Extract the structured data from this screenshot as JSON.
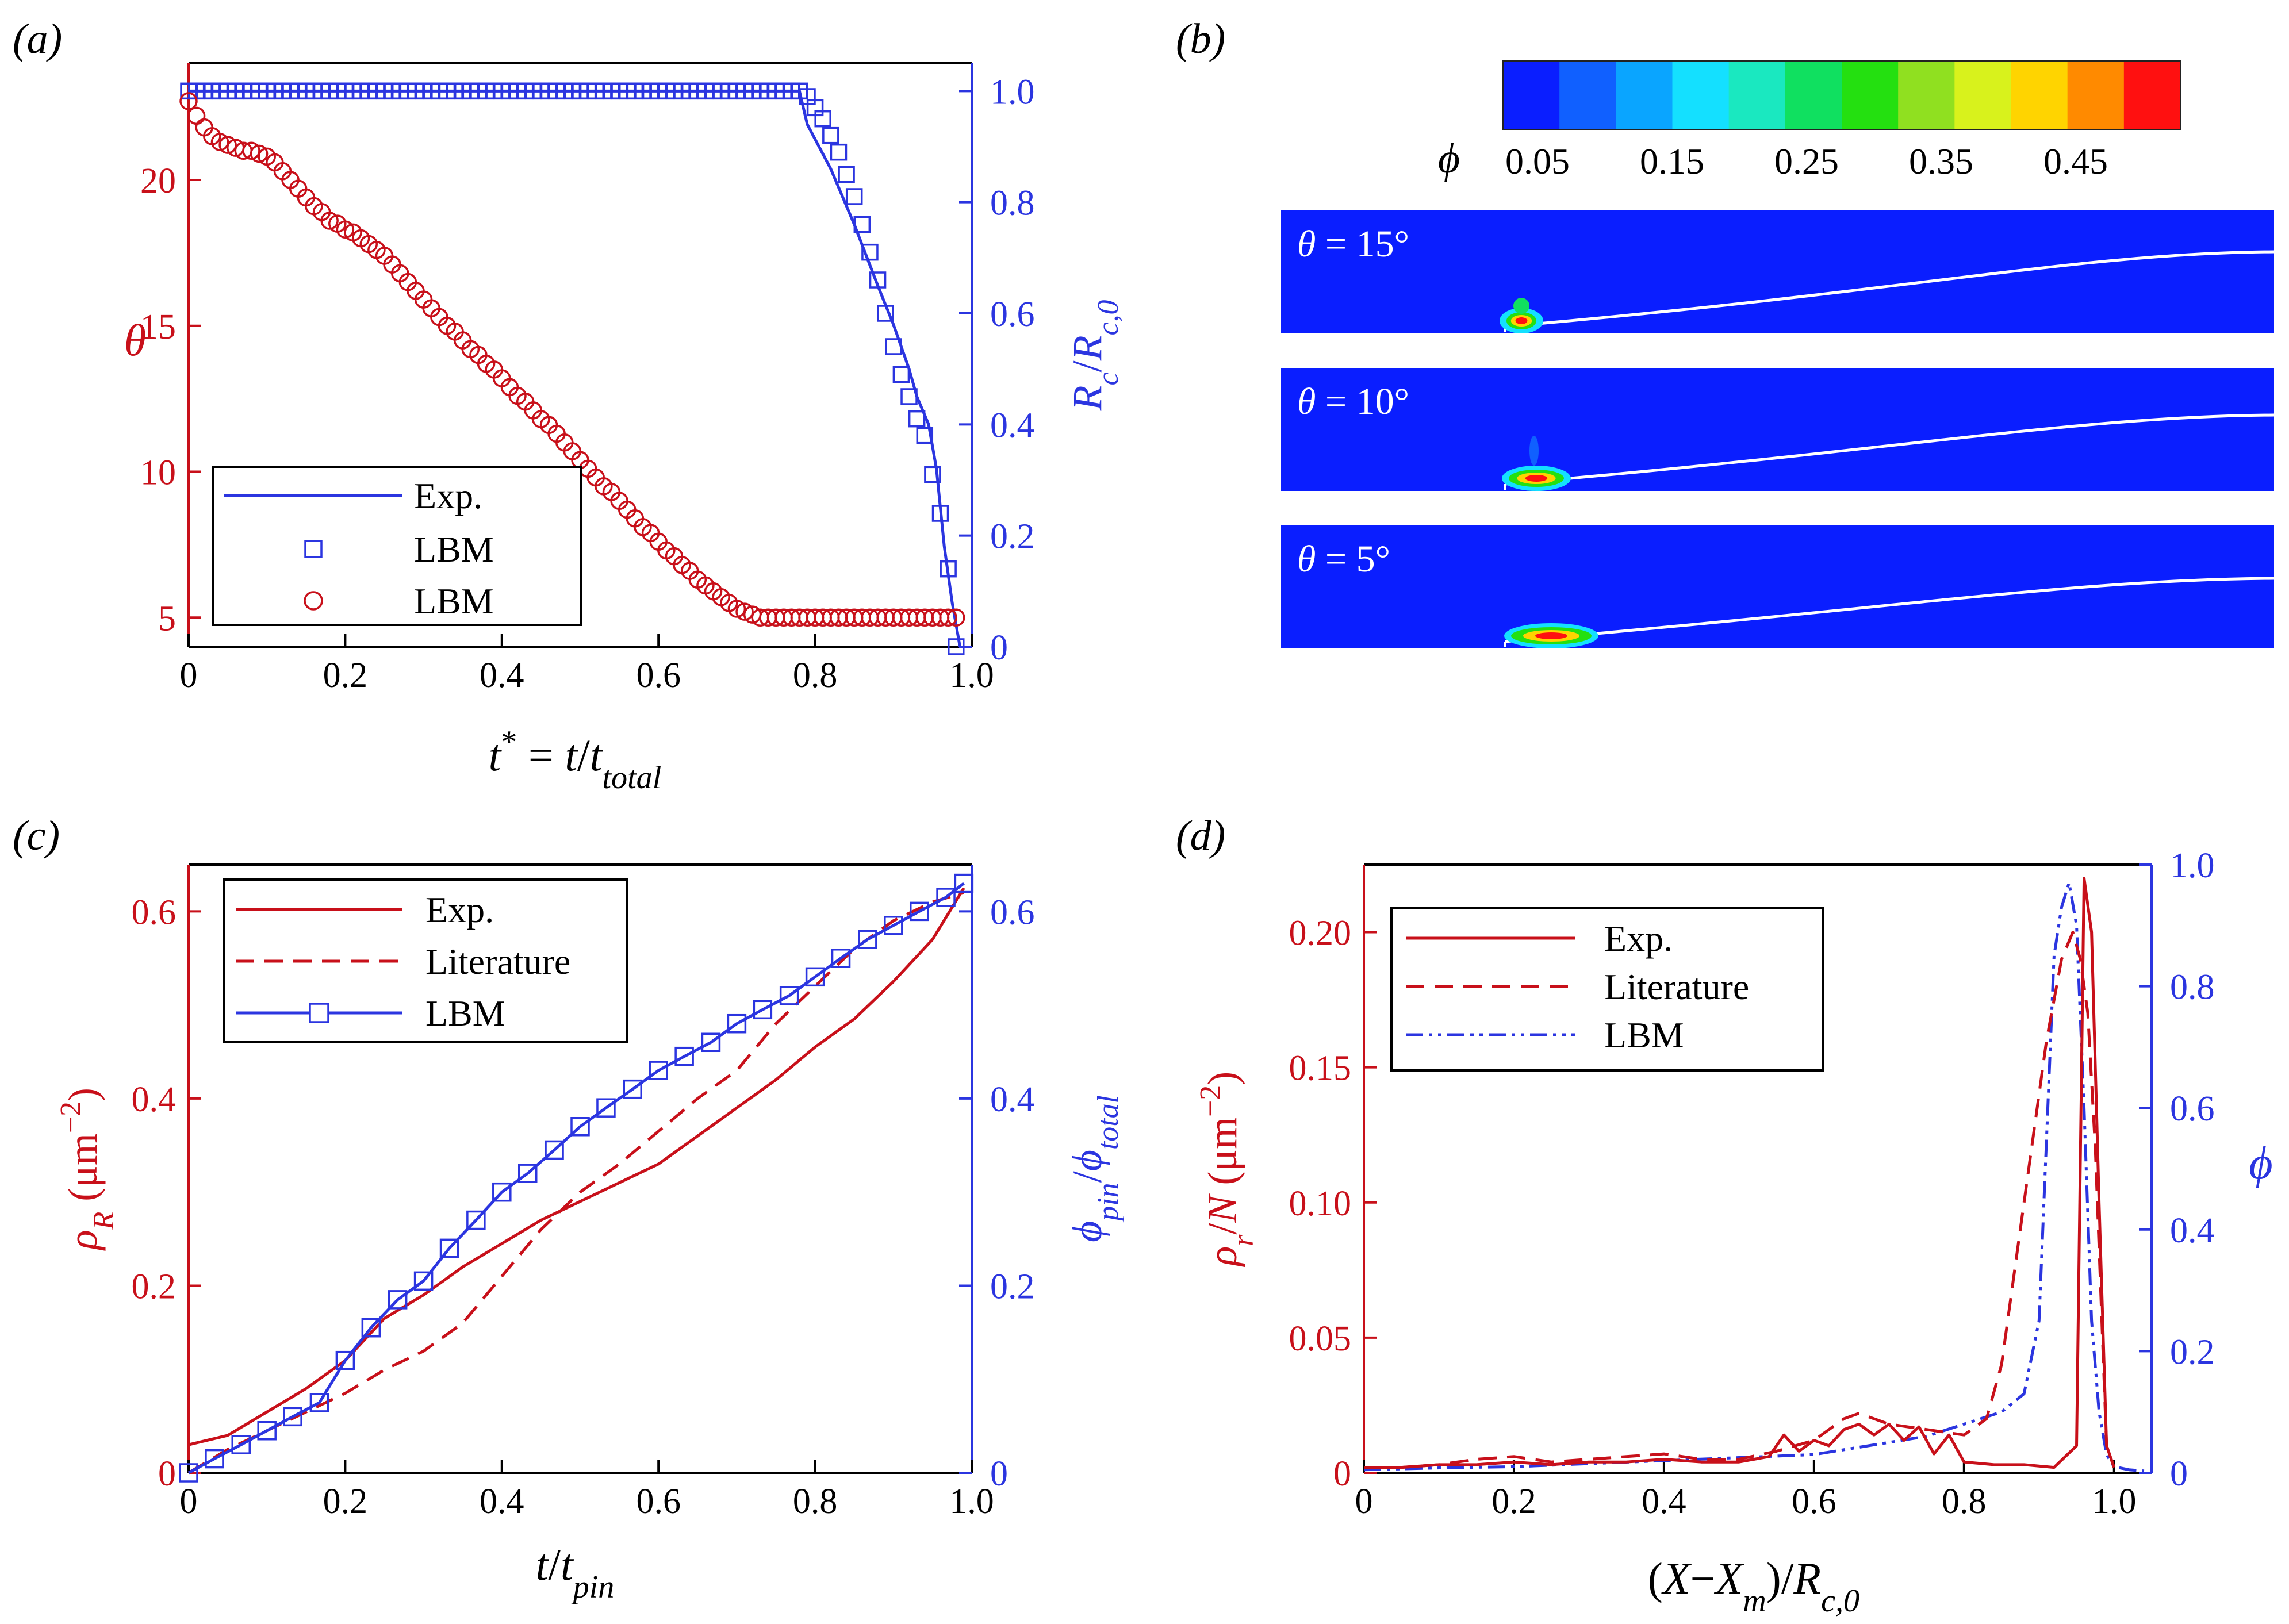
{
  "colors": {
    "red": "#c8101a",
    "blue": "#2b35e0",
    "field": "#0a1eff",
    "colormap": [
      "#0a1eff",
      "#1060ff",
      "#0aa5ff",
      "#14e0ff",
      "#1ae8c0",
      "#10e060",
      "#24e010",
      "#90e020",
      "#d8f21c",
      "#ffd400",
      "#ff8a00",
      "#ff1010"
    ]
  },
  "panels": {
    "a": {
      "tag": "(a)"
    },
    "b": {
      "tag": "(b)"
    },
    "c": {
      "tag": "(c)"
    },
    "d": {
      "tag": "(d)"
    }
  },
  "chart_data": [
    {
      "panel": "a",
      "type": "line",
      "xlabel": "t* = t/t_total",
      "ylabel": "θ",
      "y2label": "R_c/R_c,0",
      "xlim": [
        0,
        1.0
      ],
      "ylim": [
        4,
        24
      ],
      "y2lim": [
        0,
        1.05
      ],
      "xticks": [
        "0",
        "0.2",
        "0.4",
        "0.6",
        "0.8",
        "1.0"
      ],
      "yticks": [
        "5",
        "10",
        "15",
        "20"
      ],
      "y2ticks": [
        "0",
        "0.2",
        "0.4",
        "0.6",
        "0.8",
        "1.0"
      ],
      "legend": [
        "Exp.",
        "LBM",
        "LBM"
      ],
      "legend_position": "bottom-left",
      "series": [
        {
          "name": "Exp.",
          "axis": "right",
          "style": "solid-blue",
          "x": [
            0,
            0.78,
            0.79,
            0.82,
            0.85,
            0.88,
            0.9,
            0.92,
            0.93,
            0.945,
            0.955,
            0.965,
            0.975,
            0.985
          ],
          "y": [
            1.0,
            1.0,
            0.94,
            0.86,
            0.76,
            0.65,
            0.58,
            0.5,
            0.45,
            0.4,
            0.32,
            0.18,
            0.08,
            0.0
          ]
        },
        {
          "name": "LBM",
          "axis": "right",
          "style": "squares-blue",
          "x": [
            0,
            0.01,
            0.02,
            0.03,
            0.04,
            0.05,
            0.06,
            0.07,
            0.08,
            0.09,
            0.1,
            0.11,
            0.12,
            0.13,
            0.14,
            0.15,
            0.16,
            0.17,
            0.18,
            0.19,
            0.2,
            0.21,
            0.22,
            0.23,
            0.24,
            0.25,
            0.26,
            0.27,
            0.28,
            0.29,
            0.3,
            0.31,
            0.32,
            0.33,
            0.34,
            0.35,
            0.36,
            0.37,
            0.38,
            0.39,
            0.4,
            0.41,
            0.42,
            0.43,
            0.44,
            0.45,
            0.46,
            0.47,
            0.48,
            0.49,
            0.5,
            0.51,
            0.52,
            0.53,
            0.54,
            0.55,
            0.56,
            0.57,
            0.58,
            0.59,
            0.6,
            0.61,
            0.62,
            0.63,
            0.64,
            0.65,
            0.66,
            0.67,
            0.68,
            0.69,
            0.7,
            0.71,
            0.72,
            0.73,
            0.74,
            0.75,
            0.76,
            0.77,
            0.78,
            0.79,
            0.8,
            0.81,
            0.82,
            0.83,
            0.84,
            0.85,
            0.86,
            0.87,
            0.88,
            0.89,
            0.9,
            0.91,
            0.92,
            0.93,
            0.94,
            0.95,
            0.96,
            0.97,
            0.98
          ],
          "y": [
            1.0,
            1.0,
            1.0,
            1.0,
            1.0,
            1.0,
            1.0,
            1.0,
            1.0,
            1.0,
            1.0,
            1.0,
            1.0,
            1.0,
            1.0,
            1.0,
            1.0,
            1.0,
            1.0,
            1.0,
            1.0,
            1.0,
            1.0,
            1.0,
            1.0,
            1.0,
            1.0,
            1.0,
            1.0,
            1.0,
            1.0,
            1.0,
            1.0,
            1.0,
            1.0,
            1.0,
            1.0,
            1.0,
            1.0,
            1.0,
            1.0,
            1.0,
            1.0,
            1.0,
            1.0,
            1.0,
            1.0,
            1.0,
            1.0,
            1.0,
            1.0,
            1.0,
            1.0,
            1.0,
            1.0,
            1.0,
            1.0,
            1.0,
            1.0,
            1.0,
            1.0,
            1.0,
            1.0,
            1.0,
            1.0,
            1.0,
            1.0,
            1.0,
            1.0,
            1.0,
            1.0,
            1.0,
            1.0,
            1.0,
            1.0,
            1.0,
            1.0,
            1.0,
            1.0,
            0.99,
            0.97,
            0.95,
            0.92,
            0.89,
            0.85,
            0.81,
            0.76,
            0.71,
            0.66,
            0.6,
            0.54,
            0.49,
            0.45,
            0.41,
            0.38,
            0.31,
            0.24,
            0.14,
            0.0
          ]
        },
        {
          "name": "LBM",
          "axis": "left",
          "style": "circles-red",
          "x": [
            0,
            0.01,
            0.02,
            0.03,
            0.04,
            0.05,
            0.06,
            0.07,
            0.08,
            0.09,
            0.1,
            0.11,
            0.12,
            0.13,
            0.14,
            0.15,
            0.16,
            0.17,
            0.18,
            0.19,
            0.2,
            0.21,
            0.22,
            0.23,
            0.24,
            0.25,
            0.26,
            0.27,
            0.28,
            0.29,
            0.3,
            0.31,
            0.32,
            0.33,
            0.34,
            0.35,
            0.36,
            0.37,
            0.38,
            0.39,
            0.4,
            0.41,
            0.42,
            0.43,
            0.44,
            0.45,
            0.46,
            0.47,
            0.48,
            0.49,
            0.5,
            0.51,
            0.52,
            0.53,
            0.54,
            0.55,
            0.56,
            0.57,
            0.58,
            0.59,
            0.6,
            0.61,
            0.62,
            0.63,
            0.64,
            0.65,
            0.66,
            0.67,
            0.68,
            0.69,
            0.7,
            0.71,
            0.72,
            0.73,
            0.74,
            0.75,
            0.76,
            0.77,
            0.78,
            0.79,
            0.8,
            0.81,
            0.82,
            0.83,
            0.84,
            0.85,
            0.86,
            0.87,
            0.88,
            0.89,
            0.9,
            0.91,
            0.92,
            0.93,
            0.94,
            0.95,
            0.96,
            0.97,
            0.98
          ],
          "y": [
            22.7,
            22.2,
            21.8,
            21.5,
            21.3,
            21.2,
            21.1,
            21.0,
            21.0,
            20.9,
            20.8,
            20.6,
            20.3,
            20.0,
            19.7,
            19.4,
            19.1,
            18.9,
            18.6,
            18.5,
            18.3,
            18.2,
            18.0,
            17.8,
            17.6,
            17.4,
            17.1,
            16.8,
            16.5,
            16.2,
            15.9,
            15.6,
            15.3,
            15.0,
            14.8,
            14.5,
            14.2,
            14.0,
            13.7,
            13.5,
            13.2,
            12.9,
            12.6,
            12.4,
            12.1,
            11.8,
            11.6,
            11.3,
            11.0,
            10.7,
            10.4,
            10.1,
            9.8,
            9.5,
            9.3,
            9.0,
            8.7,
            8.4,
            8.1,
            7.9,
            7.6,
            7.3,
            7.1,
            6.8,
            6.6,
            6.3,
            6.1,
            5.9,
            5.7,
            5.5,
            5.3,
            5.2,
            5.1,
            5.0,
            5.0,
            5.0,
            5.0,
            5.0,
            5.0,
            5.0,
            5.0,
            5.0,
            5.0,
            5.0,
            5.0,
            5.0,
            5.0,
            5.0,
            5.0,
            5.0,
            5.0,
            5.0,
            5.0,
            5.0,
            5.0,
            5.0,
            5.0,
            5.0,
            5.0
          ]
        }
      ]
    },
    {
      "panel": "b",
      "type": "heatmap",
      "colorbar_label": "ϕ",
      "colorbar_ticks": [
        "0.05",
        "0.15",
        "0.25",
        "0.35",
        "0.45"
      ],
      "subpanels": [
        {
          "label": "θ = 15°",
          "profile_end": 0.55
        },
        {
          "label": "θ = 10°",
          "profile_end": 0.35
        },
        {
          "label": "θ = 5°",
          "profile_end": 0.2
        }
      ]
    },
    {
      "panel": "c",
      "type": "line",
      "xlabel": "t/t_pin",
      "ylabel": "ρ_R (μm^-2)",
      "y2label": "ϕ_pin/ϕ_total",
      "xlim": [
        0,
        1.0
      ],
      "ylim": [
        0,
        0.65
      ],
      "y2lim": [
        0,
        0.65
      ],
      "xticks": [
        "0",
        "0.2",
        "0.4",
        "0.6",
        "0.8",
        "1.0"
      ],
      "yticks": [
        "0",
        "0.2",
        "0.4",
        "0.6"
      ],
      "y2ticks": [
        "0",
        "0.2",
        "0.4",
        "0.6"
      ],
      "legend": [
        "Exp.",
        "Literature",
        "LBM"
      ],
      "legend_position": "top-left",
      "series": [
        {
          "name": "Exp.",
          "axis": "left",
          "style": "solid-red",
          "x": [
            0,
            0.05,
            0.1,
            0.15,
            0.2,
            0.25,
            0.3,
            0.35,
            0.4,
            0.45,
            0.5,
            0.55,
            0.6,
            0.65,
            0.7,
            0.75,
            0.8,
            0.85,
            0.9,
            0.95,
            0.99
          ],
          "y": [
            0.03,
            0.04,
            0.065,
            0.09,
            0.12,
            0.165,
            0.19,
            0.22,
            0.245,
            0.27,
            0.29,
            0.31,
            0.33,
            0.36,
            0.39,
            0.42,
            0.455,
            0.485,
            0.525,
            0.57,
            0.625
          ]
        },
        {
          "name": "Literature",
          "axis": "left",
          "style": "dashed-red",
          "x": [
            0,
            0.05,
            0.1,
            0.15,
            0.2,
            0.25,
            0.3,
            0.35,
            0.4,
            0.45,
            0.5,
            0.55,
            0.6,
            0.65,
            0.7,
            0.75,
            0.8,
            0.85,
            0.9,
            0.95,
            0.99
          ],
          "y": [
            0.0,
            0.025,
            0.045,
            0.065,
            0.085,
            0.11,
            0.13,
            0.16,
            0.21,
            0.26,
            0.3,
            0.33,
            0.365,
            0.4,
            0.43,
            0.48,
            0.52,
            0.56,
            0.59,
            0.61,
            0.62
          ]
        },
        {
          "name": "LBM",
          "axis": "right",
          "style": "squares-blue",
          "x": [
            0,
            0.033,
            0.067,
            0.1,
            0.133,
            0.167,
            0.2,
            0.233,
            0.267,
            0.3,
            0.333,
            0.367,
            0.4,
            0.433,
            0.467,
            0.5,
            0.533,
            0.567,
            0.6,
            0.633,
            0.667,
            0.7,
            0.733,
            0.767,
            0.8,
            0.833,
            0.867,
            0.9,
            0.933,
            0.967,
            0.99
          ],
          "y": [
            0.0,
            0.015,
            0.03,
            0.045,
            0.06,
            0.075,
            0.12,
            0.155,
            0.185,
            0.205,
            0.24,
            0.27,
            0.3,
            0.32,
            0.345,
            0.37,
            0.39,
            0.41,
            0.43,
            0.445,
            0.46,
            0.48,
            0.495,
            0.51,
            0.53,
            0.55,
            0.57,
            0.585,
            0.6,
            0.615,
            0.63
          ]
        }
      ]
    },
    {
      "panel": "d",
      "type": "line",
      "xlabel": "(X−X_m)/R_c,0",
      "ylabel": "ρ_r/N (μm^-2)",
      "y2label": "ϕ",
      "xlim": [
        0,
        1.05
      ],
      "ylim": [
        0,
        0.225
      ],
      "y2lim": [
        0,
        1.0
      ],
      "xticks": [
        "0",
        "0.2",
        "0.4",
        "0.6",
        "0.8",
        "1.0"
      ],
      "yticks": [
        "0",
        "0.05",
        "0.10",
        "0.15",
        "0.20"
      ],
      "y2ticks": [
        "0",
        "0.2",
        "0.4",
        "0.6",
        "0.8",
        "1.0"
      ],
      "legend": [
        "Exp.",
        "Literature",
        "LBM"
      ],
      "legend_position": "top-left",
      "series": [
        {
          "name": "Exp.",
          "axis": "left",
          "style": "solid-red",
          "x": [
            0,
            0.05,
            0.1,
            0.15,
            0.2,
            0.25,
            0.3,
            0.35,
            0.4,
            0.45,
            0.5,
            0.54,
            0.56,
            0.58,
            0.6,
            0.62,
            0.64,
            0.66,
            0.68,
            0.7,
            0.72,
            0.74,
            0.76,
            0.78,
            0.8,
            0.84,
            0.88,
            0.92,
            0.95,
            0.96,
            0.97,
            0.98,
            0.99,
            1.0
          ],
          "y": [
            0.002,
            0.002,
            0.003,
            0.003,
            0.004,
            0.003,
            0.004,
            0.004,
            0.005,
            0.004,
            0.004,
            0.006,
            0.014,
            0.008,
            0.012,
            0.01,
            0.016,
            0.018,
            0.014,
            0.018,
            0.012,
            0.017,
            0.007,
            0.014,
            0.004,
            0.003,
            0.003,
            0.002,
            0.01,
            0.22,
            0.2,
            0.1,
            0.01,
            0.002
          ]
        },
        {
          "name": "Literature",
          "axis": "left",
          "style": "dashed-red",
          "x": [
            0,
            0.05,
            0.1,
            0.15,
            0.2,
            0.25,
            0.3,
            0.35,
            0.4,
            0.45,
            0.5,
            0.55,
            0.6,
            0.64,
            0.66,
            0.7,
            0.75,
            0.8,
            0.83,
            0.85,
            0.87,
            0.89,
            0.91,
            0.93,
            0.945,
            0.955,
            0.965,
            0.975,
            0.99,
            1.0
          ],
          "y": [
            0.002,
            0.002,
            0.003,
            0.005,
            0.006,
            0.004,
            0.005,
            0.006,
            0.007,
            0.005,
            0.005,
            0.008,
            0.012,
            0.02,
            0.022,
            0.018,
            0.016,
            0.014,
            0.02,
            0.04,
            0.08,
            0.12,
            0.16,
            0.19,
            0.2,
            0.19,
            0.17,
            0.12,
            0.01,
            0.002
          ]
        },
        {
          "name": "LBM",
          "axis": "right",
          "style": "dashdot-blue",
          "x": [
            0,
            0.1,
            0.2,
            0.3,
            0.4,
            0.5,
            0.6,
            0.65,
            0.7,
            0.75,
            0.8,
            0.85,
            0.88,
            0.9,
            0.91,
            0.92,
            0.93,
            0.94,
            0.95,
            0.96,
            0.97,
            0.98,
            0.99,
            1.0,
            1.02,
            1.04
          ],
          "y": [
            0.005,
            0.008,
            0.01,
            0.015,
            0.02,
            0.025,
            0.03,
            0.04,
            0.05,
            0.06,
            0.08,
            0.1,
            0.13,
            0.25,
            0.55,
            0.85,
            0.93,
            0.97,
            0.9,
            0.6,
            0.25,
            0.1,
            0.03,
            0.01,
            0.005,
            0.003
          ]
        }
      ]
    }
  ]
}
